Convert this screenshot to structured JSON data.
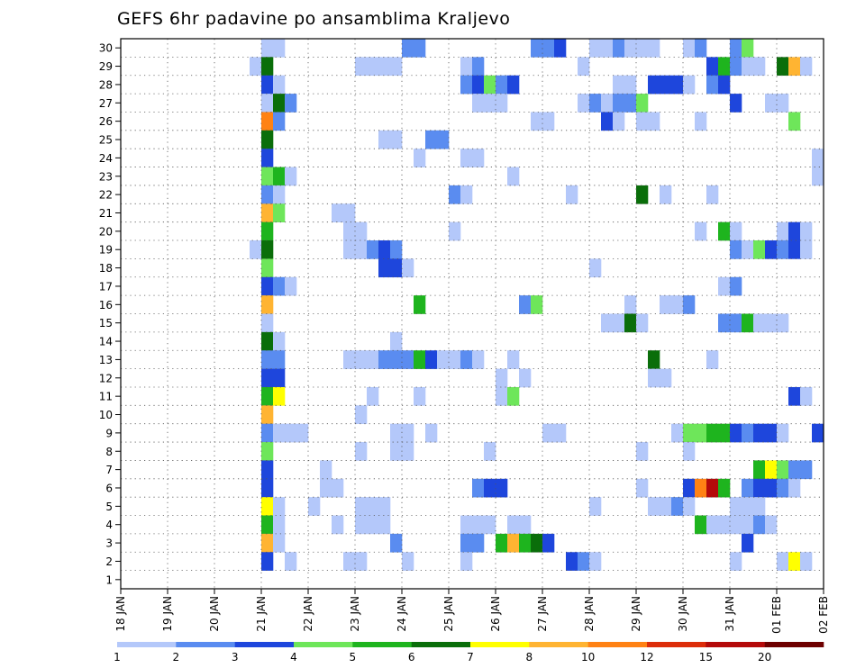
{
  "chart_data": {
    "type": "heatmap",
    "title": "GEFS 6hr padavine po ansamblima Kraljevo",
    "y_ticks": [
      "1",
      "2",
      "3",
      "4",
      "5",
      "6",
      "7",
      "8",
      "9",
      "10",
      "11",
      "12",
      "13",
      "14",
      "15",
      "16",
      "17",
      "18",
      "19",
      "20",
      "21",
      "22",
      "23",
      "24",
      "25",
      "26",
      "27",
      "28",
      "29",
      "30"
    ],
    "x_ticks": [
      "18 JAN",
      "19 JAN",
      "20 JAN",
      "21 JAN",
      "22 JAN",
      "23 JAN",
      "24 JAN",
      "25 JAN",
      "26 JAN",
      "27 JAN",
      "28 JAN",
      "29 JAN",
      "30 JAN",
      "31 JAN",
      "01 FEB",
      "02 FEB"
    ],
    "x_steps_per_day": 4,
    "members": 30,
    "grid": true,
    "colorbar": {
      "labels": [
        "1",
        "2",
        "3",
        "4",
        "5",
        "6",
        "7",
        "8",
        "10",
        "12",
        "15",
        "20"
      ],
      "colors": [
        "#b4c8fa",
        "#5a8cf0",
        "#1e46dc",
        "#6ee65a",
        "#1eb41e",
        "#0a6e0a",
        "#ffff00",
        "#ffb432",
        "#ff8214",
        "#dc2d0a",
        "#b40a0a",
        "#6e0000"
      ]
    },
    "cells": [
      [
        30,
        12,
        1
      ],
      [
        30,
        13,
        1
      ],
      [
        30,
        24,
        2
      ],
      [
        30,
        25,
        2
      ],
      [
        30,
        35,
        2
      ],
      [
        30,
        36,
        2
      ],
      [
        30,
        37,
        3
      ],
      [
        30,
        40,
        1
      ],
      [
        30,
        41,
        1
      ],
      [
        30,
        42,
        2
      ],
      [
        30,
        43,
        1
      ],
      [
        30,
        44,
        1
      ],
      [
        30,
        45,
        1
      ],
      [
        30,
        48,
        1
      ],
      [
        30,
        49,
        2
      ],
      [
        30,
        52,
        2
      ],
      [
        30,
        53,
        4
      ],
      [
        29,
        11,
        1
      ],
      [
        29,
        12,
        6
      ],
      [
        29,
        20,
        1
      ],
      [
        29,
        21,
        1
      ],
      [
        29,
        22,
        1
      ],
      [
        29,
        23,
        1
      ],
      [
        29,
        29,
        1
      ],
      [
        29,
        30,
        2
      ],
      [
        29,
        39,
        1
      ],
      [
        29,
        50,
        3
      ],
      [
        29,
        51,
        5
      ],
      [
        29,
        52,
        2
      ],
      [
        29,
        53,
        1
      ],
      [
        29,
        54,
        1
      ],
      [
        29,
        56,
        6
      ],
      [
        29,
        57,
        8
      ],
      [
        29,
        58,
        1
      ],
      [
        28,
        12,
        3
      ],
      [
        28,
        13,
        1
      ],
      [
        28,
        29,
        2
      ],
      [
        28,
        30,
        3
      ],
      [
        28,
        31,
        4
      ],
      [
        28,
        32,
        2
      ],
      [
        28,
        33,
        3
      ],
      [
        28,
        42,
        1
      ],
      [
        28,
        43,
        1
      ],
      [
        28,
        45,
        3
      ],
      [
        28,
        46,
        3
      ],
      [
        28,
        47,
        3
      ],
      [
        28,
        48,
        1
      ],
      [
        28,
        50,
        2
      ],
      [
        28,
        51,
        3
      ],
      [
        27,
        12,
        1
      ],
      [
        27,
        13,
        6
      ],
      [
        27,
        14,
        2
      ],
      [
        27,
        30,
        1
      ],
      [
        27,
        31,
        1
      ],
      [
        27,
        32,
        1
      ],
      [
        27,
        39,
        1
      ],
      [
        27,
        40,
        2
      ],
      [
        27,
        41,
        1
      ],
      [
        27,
        42,
        2
      ],
      [
        27,
        43,
        2
      ],
      [
        27,
        44,
        4
      ],
      [
        27,
        52,
        3
      ],
      [
        27,
        55,
        1
      ],
      [
        27,
        56,
        1
      ],
      [
        26,
        12,
        9
      ],
      [
        26,
        13,
        2
      ],
      [
        26,
        35,
        1
      ],
      [
        26,
        36,
        1
      ],
      [
        26,
        41,
        3
      ],
      [
        26,
        42,
        1
      ],
      [
        26,
        44,
        1
      ],
      [
        26,
        45,
        1
      ],
      [
        26,
        49,
        1
      ],
      [
        26,
        57,
        4
      ],
      [
        25,
        12,
        6
      ],
      [
        25,
        22,
        1
      ],
      [
        25,
        23,
        1
      ],
      [
        25,
        26,
        2
      ],
      [
        25,
        27,
        2
      ],
      [
        24,
        12,
        3
      ],
      [
        24,
        25,
        1
      ],
      [
        24,
        29,
        1
      ],
      [
        24,
        30,
        1
      ],
      [
        24,
        59,
        1
      ],
      [
        23,
        12,
        4
      ],
      [
        23,
        13,
        5
      ],
      [
        23,
        14,
        1
      ],
      [
        23,
        33,
        1
      ],
      [
        23,
        59,
        1
      ],
      [
        22,
        12,
        2
      ],
      [
        22,
        13,
        1
      ],
      [
        22,
        28,
        2
      ],
      [
        22,
        29,
        1
      ],
      [
        22,
        38,
        1
      ],
      [
        22,
        44,
        6
      ],
      [
        22,
        46,
        1
      ],
      [
        22,
        50,
        1
      ],
      [
        21,
        12,
        8
      ],
      [
        21,
        13,
        4
      ],
      [
        21,
        18,
        1
      ],
      [
        21,
        19,
        1
      ],
      [
        20,
        12,
        5
      ],
      [
        20,
        19,
        1
      ],
      [
        20,
        20,
        1
      ],
      [
        20,
        28,
        1
      ],
      [
        20,
        49,
        1
      ],
      [
        20,
        51,
        5
      ],
      [
        20,
        52,
        1
      ],
      [
        20,
        56,
        1
      ],
      [
        20,
        57,
        3
      ],
      [
        20,
        58,
        1
      ],
      [
        19,
        11,
        1
      ],
      [
        19,
        12,
        6
      ],
      [
        19,
        19,
        1
      ],
      [
        19,
        20,
        1
      ],
      [
        19,
        21,
        2
      ],
      [
        19,
        22,
        3
      ],
      [
        19,
        23,
        2
      ],
      [
        19,
        52,
        2
      ],
      [
        19,
        53,
        1
      ],
      [
        19,
        54,
        4
      ],
      [
        19,
        55,
        3
      ],
      [
        19,
        56,
        2
      ],
      [
        19,
        57,
        3
      ],
      [
        19,
        58,
        1
      ],
      [
        18,
        12,
        4
      ],
      [
        18,
        22,
        3
      ],
      [
        18,
        23,
        3
      ],
      [
        18,
        24,
        1
      ],
      [
        18,
        40,
        1
      ],
      [
        17,
        12,
        3
      ],
      [
        17,
        13,
        2
      ],
      [
        17,
        14,
        1
      ],
      [
        17,
        51,
        1
      ],
      [
        17,
        52,
        2
      ],
      [
        16,
        12,
        8
      ],
      [
        16,
        25,
        5
      ],
      [
        16,
        34,
        2
      ],
      [
        16,
        35,
        4
      ],
      [
        16,
        43,
        1
      ],
      [
        16,
        46,
        1
      ],
      [
        16,
        47,
        1
      ],
      [
        16,
        48,
        2
      ],
      [
        15,
        12,
        1
      ],
      [
        15,
        41,
        1
      ],
      [
        15,
        42,
        1
      ],
      [
        15,
        43,
        6
      ],
      [
        15,
        44,
        1
      ],
      [
        15,
        51,
        2
      ],
      [
        15,
        52,
        2
      ],
      [
        15,
        53,
        5
      ],
      [
        15,
        54,
        1
      ],
      [
        15,
        55,
        1
      ],
      [
        15,
        56,
        1
      ],
      [
        14,
        12,
        6
      ],
      [
        14,
        13,
        1
      ],
      [
        14,
        23,
        1
      ],
      [
        13,
        12,
        2
      ],
      [
        13,
        13,
        2
      ],
      [
        13,
        19,
        1
      ],
      [
        13,
        20,
        1
      ],
      [
        13,
        21,
        1
      ],
      [
        13,
        22,
        2
      ],
      [
        13,
        23,
        2
      ],
      [
        13,
        24,
        2
      ],
      [
        13,
        25,
        5
      ],
      [
        13,
        26,
        3
      ],
      [
        13,
        27,
        1
      ],
      [
        13,
        28,
        1
      ],
      [
        13,
        29,
        2
      ],
      [
        13,
        30,
        1
      ],
      [
        13,
        33,
        1
      ],
      [
        13,
        45,
        6
      ],
      [
        13,
        50,
        1
      ],
      [
        12,
        12,
        3
      ],
      [
        12,
        13,
        3
      ],
      [
        12,
        32,
        1
      ],
      [
        12,
        34,
        1
      ],
      [
        12,
        45,
        1
      ],
      [
        12,
        46,
        1
      ],
      [
        11,
        12,
        5
      ],
      [
        11,
        13,
        7
      ],
      [
        11,
        21,
        1
      ],
      [
        11,
        25,
        1
      ],
      [
        11,
        32,
        1
      ],
      [
        11,
        33,
        4
      ],
      [
        11,
        57,
        3
      ],
      [
        11,
        58,
        1
      ],
      [
        10,
        12,
        8
      ],
      [
        10,
        20,
        1
      ],
      [
        9,
        12,
        2
      ],
      [
        9,
        13,
        1
      ],
      [
        9,
        14,
        1
      ],
      [
        9,
        15,
        1
      ],
      [
        9,
        23,
        1
      ],
      [
        9,
        24,
        1
      ],
      [
        9,
        26,
        1
      ],
      [
        9,
        36,
        1
      ],
      [
        9,
        37,
        1
      ],
      [
        9,
        47,
        1
      ],
      [
        9,
        48,
        4
      ],
      [
        9,
        49,
        4
      ],
      [
        9,
        50,
        5
      ],
      [
        9,
        51,
        5
      ],
      [
        9,
        52,
        3
      ],
      [
        9,
        53,
        2
      ],
      [
        9,
        54,
        3
      ],
      [
        9,
        55,
        3
      ],
      [
        9,
        56,
        1
      ],
      [
        9,
        59,
        3
      ],
      [
        8,
        12,
        4
      ],
      [
        8,
        20,
        1
      ],
      [
        8,
        23,
        1
      ],
      [
        8,
        24,
        1
      ],
      [
        8,
        31,
        1
      ],
      [
        8,
        44,
        1
      ],
      [
        8,
        48,
        1
      ],
      [
        7,
        12,
        3
      ],
      [
        7,
        17,
        1
      ],
      [
        7,
        54,
        5
      ],
      [
        7,
        55,
        7
      ],
      [
        7,
        56,
        4
      ],
      [
        7,
        57,
        2
      ],
      [
        7,
        58,
        2
      ],
      [
        6,
        12,
        3
      ],
      [
        6,
        17,
        1
      ],
      [
        6,
        18,
        1
      ],
      [
        6,
        30,
        2
      ],
      [
        6,
        31,
        3
      ],
      [
        6,
        32,
        3
      ],
      [
        6,
        44,
        1
      ],
      [
        6,
        48,
        3
      ],
      [
        6,
        49,
        9
      ],
      [
        6,
        50,
        11
      ],
      [
        6,
        51,
        5
      ],
      [
        6,
        53,
        2
      ],
      [
        6,
        54,
        3
      ],
      [
        6,
        55,
        3
      ],
      [
        6,
        56,
        2
      ],
      [
        6,
        57,
        1
      ],
      [
        5,
        12,
        7
      ],
      [
        5,
        13,
        1
      ],
      [
        5,
        16,
        1
      ],
      [
        5,
        20,
        1
      ],
      [
        5,
        21,
        1
      ],
      [
        5,
        22,
        1
      ],
      [
        5,
        40,
        1
      ],
      [
        5,
        45,
        1
      ],
      [
        5,
        46,
        1
      ],
      [
        5,
        47,
        2
      ],
      [
        5,
        48,
        1
      ],
      [
        5,
        52,
        1
      ],
      [
        5,
        53,
        1
      ],
      [
        5,
        54,
        1
      ],
      [
        4,
        12,
        5
      ],
      [
        4,
        13,
        1
      ],
      [
        4,
        18,
        1
      ],
      [
        4,
        20,
        1
      ],
      [
        4,
        21,
        1
      ],
      [
        4,
        22,
        1
      ],
      [
        4,
        29,
        1
      ],
      [
        4,
        30,
        1
      ],
      [
        4,
        31,
        1
      ],
      [
        4,
        33,
        1
      ],
      [
        4,
        34,
        1
      ],
      [
        4,
        49,
        5
      ],
      [
        4,
        50,
        1
      ],
      [
        4,
        51,
        1
      ],
      [
        4,
        52,
        1
      ],
      [
        4,
        53,
        1
      ],
      [
        4,
        54,
        2
      ],
      [
        4,
        55,
        1
      ],
      [
        3,
        12,
        8
      ],
      [
        3,
        13,
        1
      ],
      [
        3,
        23,
        2
      ],
      [
        3,
        29,
        2
      ],
      [
        3,
        30,
        2
      ],
      [
        3,
        32,
        5
      ],
      [
        3,
        33,
        8
      ],
      [
        3,
        34,
        5
      ],
      [
        3,
        35,
        6
      ],
      [
        3,
        36,
        3
      ],
      [
        3,
        53,
        3
      ],
      [
        2,
        12,
        3
      ],
      [
        2,
        14,
        1
      ],
      [
        2,
        19,
        1
      ],
      [
        2,
        20,
        1
      ],
      [
        2,
        24,
        1
      ],
      [
        2,
        29,
        1
      ],
      [
        2,
        38,
        3
      ],
      [
        2,
        39,
        2
      ],
      [
        2,
        40,
        1
      ],
      [
        2,
        52,
        1
      ],
      [
        2,
        56,
        1
      ],
      [
        2,
        57,
        7
      ],
      [
        2,
        58,
        1
      ]
    ]
  }
}
